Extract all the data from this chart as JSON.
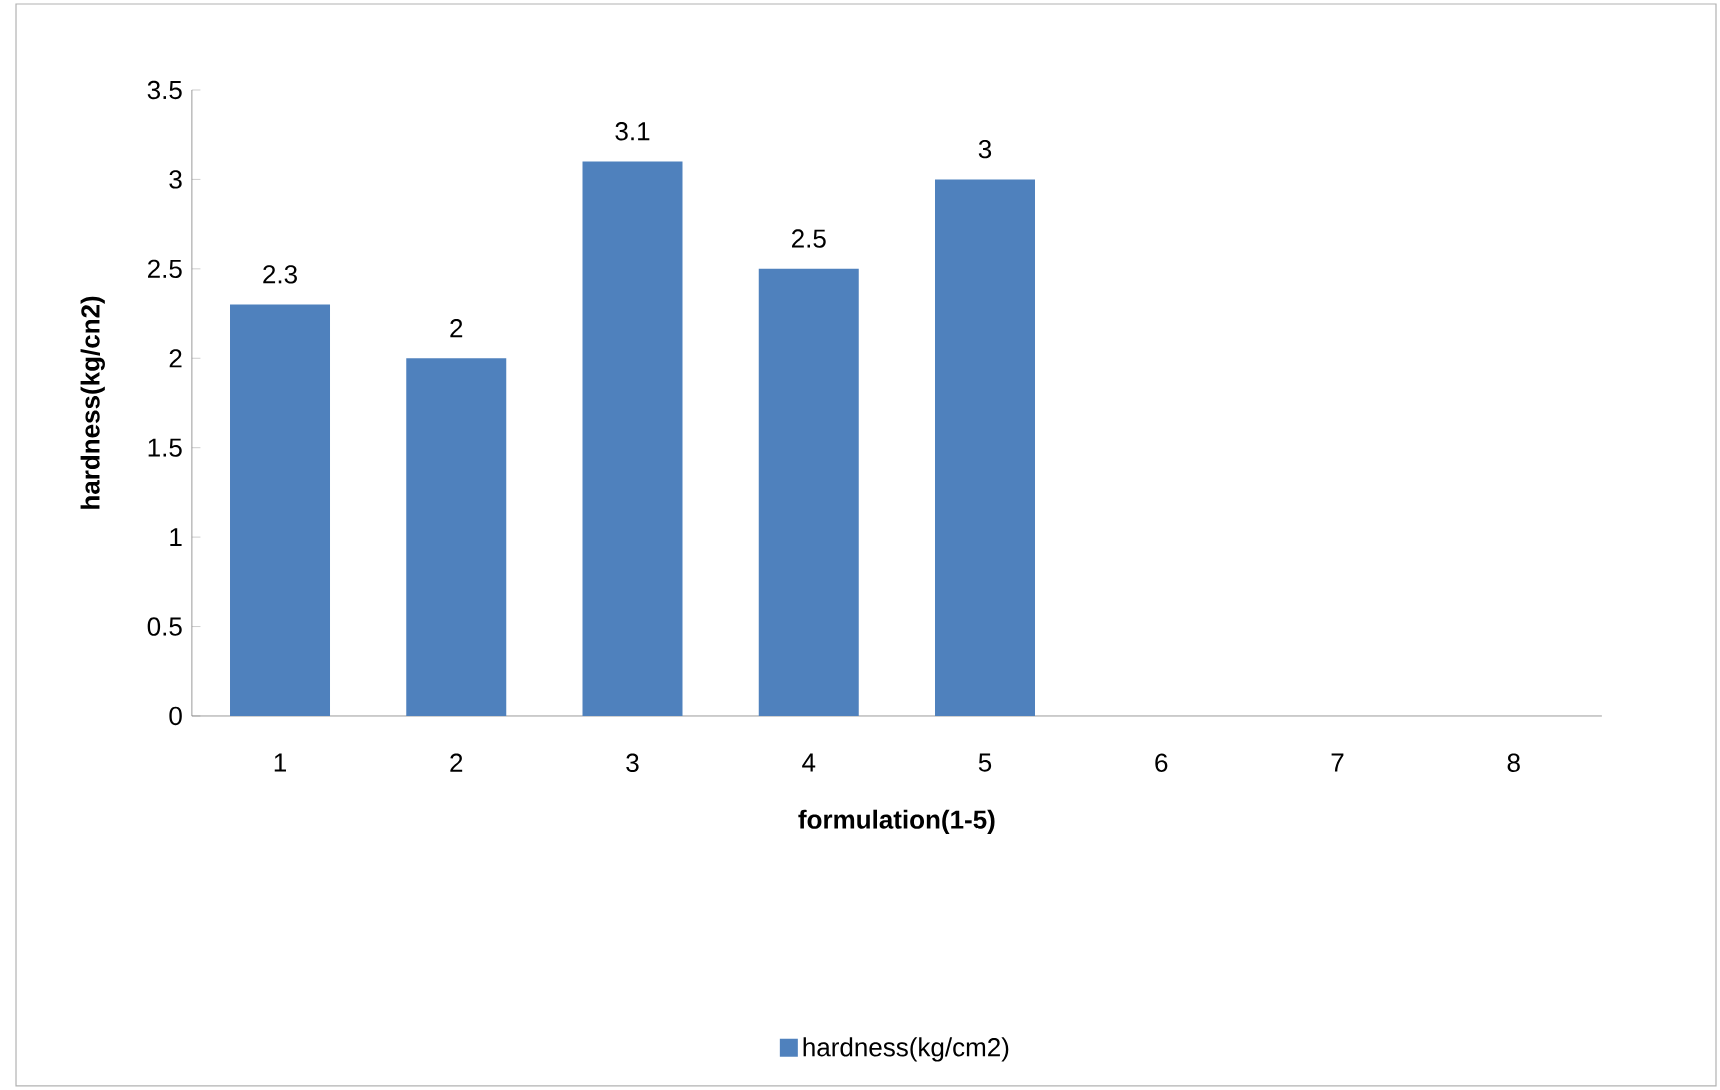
{
  "chart_data": {
    "type": "bar",
    "xlabel": "formulation(1-5)",
    "ylabel": "hardness(kg/cn2)",
    "categories": [
      "1",
      "2",
      "3",
      "4",
      "5",
      "6",
      "7",
      "8"
    ],
    "series": [
      {
        "name": "hardness(kg/cm2)",
        "color": "#4f81bd",
        "values": [
          2.3,
          2,
          3.1,
          2.5,
          3,
          null,
          null,
          null
        ]
      }
    ],
    "ylim": [
      0,
      3.5
    ],
    "yticks": [
      0,
      0.5,
      1,
      1.5,
      2,
      2.5,
      3,
      3.5
    ],
    "data_labels": true,
    "legend": "bottom",
    "grid": false
  }
}
